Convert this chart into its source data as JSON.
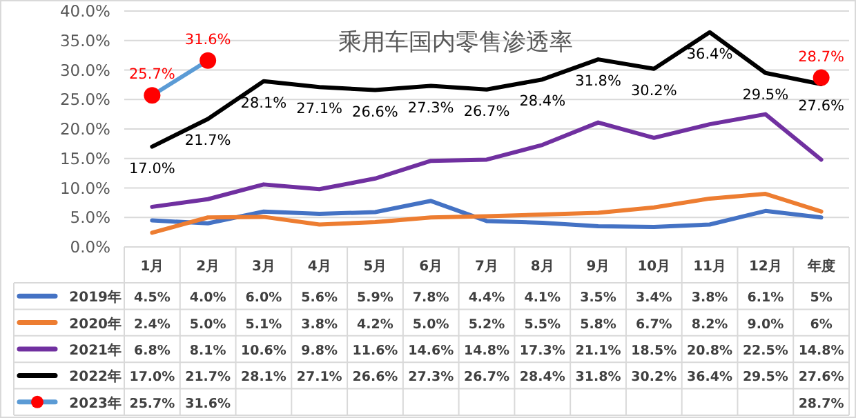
{
  "chart_data": {
    "type": "line",
    "title": "乘用车国内零售渗透率",
    "categories": [
      "1月",
      "2月",
      "3月",
      "4月",
      "5月",
      "6月",
      "7月",
      "8月",
      "9月",
      "10月",
      "11月",
      "12月",
      "年度"
    ],
    "ylim": [
      0,
      40
    ],
    "yticks": [
      {
        "value": 0,
        "label": "0.0%"
      },
      {
        "value": 5,
        "label": "5.0%"
      },
      {
        "value": 10,
        "label": "10.0%"
      },
      {
        "value": 15,
        "label": "15.0%"
      },
      {
        "value": 20,
        "label": "20.0%"
      },
      {
        "value": 25,
        "label": "25.0%"
      },
      {
        "value": 30,
        "label": "30.0%"
      },
      {
        "value": 35,
        "label": "35.0%"
      },
      {
        "value": 40,
        "label": "40.0%"
      }
    ],
    "grid": "y",
    "legend": "bottom",
    "series": [
      {
        "name": "2019年",
        "color": "#4472c4",
        "values": [
          4.5,
          4.0,
          6.0,
          5.6,
          5.9,
          7.8,
          4.4,
          4.1,
          3.5,
          3.4,
          3.8,
          6.1,
          5
        ],
        "value_labels": [
          "4.5%",
          "4.0%",
          "6.0%",
          "5.6%",
          "5.9%",
          "7.8%",
          "4.4%",
          "4.1%",
          "3.5%",
          "3.4%",
          "3.8%",
          "6.1%",
          "5%"
        ]
      },
      {
        "name": "2020年",
        "color": "#ed7d31",
        "values": [
          2.4,
          5.0,
          5.1,
          3.8,
          4.2,
          5.0,
          5.2,
          5.5,
          5.8,
          6.7,
          8.2,
          9.0,
          6
        ],
        "value_labels": [
          "2.4%",
          "5.0%",
          "5.1%",
          "3.8%",
          "4.2%",
          "5.0%",
          "5.2%",
          "5.5%",
          "5.8%",
          "6.7%",
          "8.2%",
          "9.0%",
          "6%"
        ]
      },
      {
        "name": "2021年",
        "color": "#7030a0",
        "values": [
          6.8,
          8.1,
          10.6,
          9.8,
          11.6,
          14.6,
          14.8,
          17.3,
          21.1,
          18.5,
          20.8,
          22.5,
          14.8
        ],
        "value_labels": [
          "6.8%",
          "8.1%",
          "10.6%",
          "9.8%",
          "11.6%",
          "14.6%",
          "14.8%",
          "17.3%",
          "21.1%",
          "18.5%",
          "20.8%",
          "22.5%",
          "14.8%"
        ]
      },
      {
        "name": "2022年",
        "color": "#000000",
        "data_labels": true,
        "values": [
          17.0,
          21.7,
          28.1,
          27.1,
          26.6,
          27.3,
          26.7,
          28.4,
          31.8,
          30.2,
          36.4,
          29.5,
          27.6
        ],
        "value_labels": [
          "17.0%",
          "21.7%",
          "28.1%",
          "27.1%",
          "26.6%",
          "27.3%",
          "26.7%",
          "28.4%",
          "31.8%",
          "30.2%",
          "36.4%",
          "29.5%",
          "27.6%"
        ]
      },
      {
        "name": "2023年",
        "color": "#5b9bd5",
        "marker": "circle",
        "colors": [
          "#ff0000",
          "#ff0000",
          null,
          null,
          null,
          null,
          null,
          null,
          null,
          null,
          null,
          null,
          "#ff0000"
        ],
        "data_labels": true,
        "values": [
          25.7,
          31.6,
          null,
          null,
          null,
          null,
          null,
          null,
          null,
          null,
          null,
          null,
          28.7
        ],
        "value_labels": [
          "25.7%",
          "31.6%",
          null,
          null,
          null,
          null,
          null,
          null,
          null,
          null,
          null,
          null,
          "28.7%"
        ]
      }
    ]
  }
}
